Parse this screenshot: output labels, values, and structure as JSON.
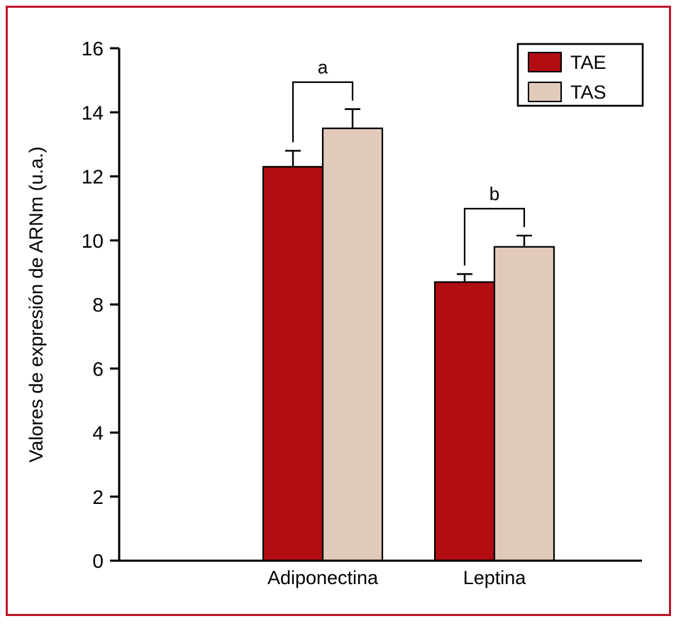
{
  "figure": {
    "border_color": "#c0182b",
    "background": "#ffffff"
  },
  "chart_data": {
    "type": "bar",
    "title": "",
    "xlabel": "",
    "ylabel": "Valores de expresión de ARNm (u.a.)",
    "ylim": [
      0,
      16
    ],
    "ytick_step": 2,
    "grid": false,
    "legend_position": "top-right",
    "categories": [
      "Adiponectina",
      "Leptina"
    ],
    "series": [
      {
        "name": "TAE",
        "color": "#b10d12",
        "values": [
          12.3,
          8.7
        ],
        "errors": [
          0.5,
          0.25
        ]
      },
      {
        "name": "TAS",
        "color": "#e2cabb",
        "values": [
          13.5,
          9.8
        ],
        "errors": [
          0.6,
          0.35
        ]
      }
    ],
    "significance": [
      {
        "label": "a",
        "category": "Adiponectina",
        "category_index": 0
      },
      {
        "label": "b",
        "category": "Leptina",
        "category_index": 1
      }
    ]
  }
}
